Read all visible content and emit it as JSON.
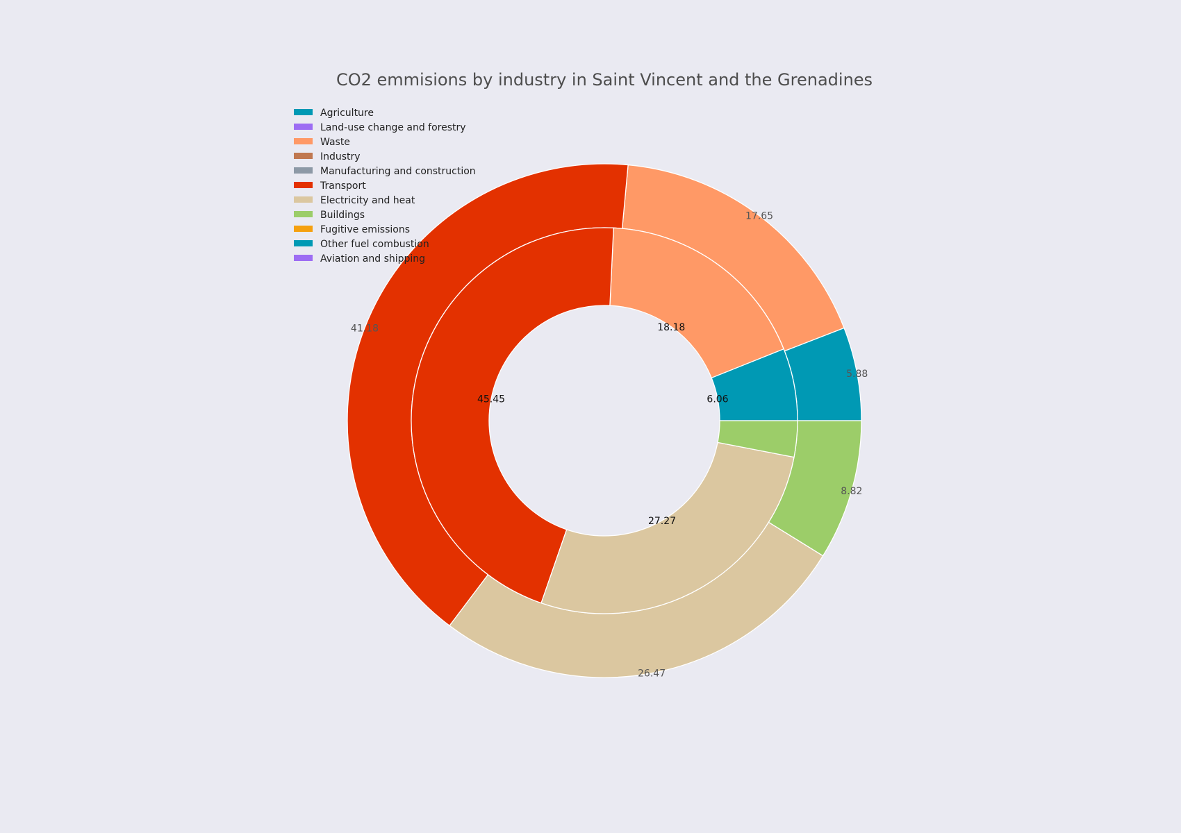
{
  "chart_data": {
    "type": "pie",
    "style": "nested-donut",
    "title": "CO2 emmisions by industry in Saint Vincent and the Grenadines",
    "legend": {
      "placement": "top-left",
      "entries": [
        {
          "label": "Agriculture",
          "color": "#0099b4"
        },
        {
          "label": "Land-use change and forestry",
          "color": "#9d6df3"
        },
        {
          "label": "Waste",
          "color": "#ff9966"
        },
        {
          "label": "Industry",
          "color": "#c07850"
        },
        {
          "label": "Manufacturing and construction",
          "color": "#8d99a6"
        },
        {
          "label": "Transport",
          "color": "#e33100"
        },
        {
          "label": "Electricity and heat",
          "color": "#dbc7a0"
        },
        {
          "label": "Buildings",
          "color": "#9ccd69"
        },
        {
          "label": "Fugitive emissions",
          "color": "#f5a00f"
        },
        {
          "label": "Other fuel combustion",
          "color": "#0099b4"
        },
        {
          "label": "Aviation and shipping",
          "color": "#9d6df3"
        }
      ]
    },
    "rings": [
      {
        "name": "outer",
        "slices": [
          {
            "label": "Agriculture",
            "value": 5.88,
            "display": "5.88",
            "color": "#0099b4"
          },
          {
            "label": "Waste",
            "value": 17.65,
            "display": "17.65",
            "color": "#ff9966"
          },
          {
            "label": "Transport",
            "value": 41.18,
            "display": "41.18",
            "color": "#e33100"
          },
          {
            "label": "Electricity and heat",
            "value": 26.47,
            "display": "26.47",
            "color": "#dbc7a0"
          },
          {
            "label": "Buildings",
            "value": 8.82,
            "display": "8.82",
            "color": "#9ccd69"
          }
        ]
      },
      {
        "name": "inner",
        "slices": [
          {
            "label": "Agriculture",
            "value": 6.06,
            "display": "6.06",
            "color": "#0099b4"
          },
          {
            "label": "Waste",
            "value": 18.18,
            "display": "18.18",
            "color": "#ff9966"
          },
          {
            "label": "Transport",
            "value": 45.45,
            "display": "45.45",
            "color": "#e33100"
          },
          {
            "label": "Electricity and heat",
            "value": 27.27,
            "display": "27.27",
            "color": "#dbc7a0"
          },
          {
            "label": "Buildings",
            "value": 3.03,
            "display": "",
            "color": "#9ccd69"
          }
        ]
      }
    ]
  }
}
